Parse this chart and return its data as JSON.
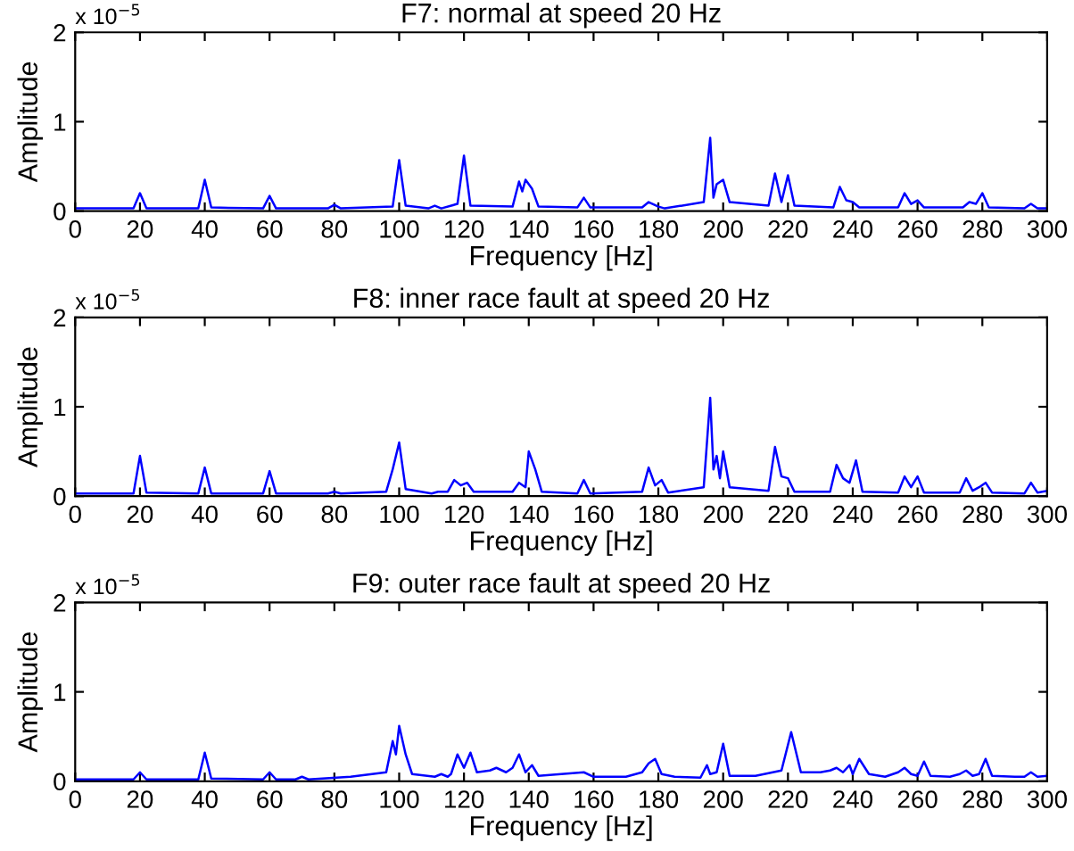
{
  "chart_data": [
    {
      "type": "line",
      "title": "F7: normal at speed 20 Hz",
      "xlabel": "Frequency [Hz]",
      "ylabel": "Amplitude",
      "annotations": [
        "x 10$^{−5}$"
      ],
      "xlim": [
        0,
        300
      ],
      "xticks": [
        0,
        20,
        40,
        60,
        80,
        100,
        120,
        140,
        160,
        180,
        200,
        220,
        240,
        260,
        280,
        300
      ],
      "ylim": [
        0,
        2
      ],
      "yticks": [
        0,
        1,
        2
      ],
      "grid": false,
      "legend": false,
      "series": [
        {
          "color": "#0000ff",
          "x": [
            0,
            18,
            20,
            22,
            38,
            40,
            42,
            58,
            60,
            62,
            78,
            80,
            82,
            98,
            100,
            102,
            109,
            111,
            113,
            118,
            120,
            122,
            135,
            137,
            138,
            139,
            141,
            143,
            155,
            157,
            159,
            175,
            177,
            180,
            182,
            194,
            196,
            197,
            198,
            200,
            202,
            214,
            216,
            218,
            220,
            222,
            234,
            236,
            238,
            240,
            242,
            254,
            256,
            258,
            260,
            262,
            274,
            276,
            278,
            280,
            282,
            293,
            295,
            297,
            300
          ],
          "values": [
            0.03,
            0.03,
            0.2,
            0.03,
            0.03,
            0.35,
            0.04,
            0.03,
            0.17,
            0.03,
            0.03,
            0.07,
            0.03,
            0.05,
            0.57,
            0.06,
            0.03,
            0.06,
            0.03,
            0.08,
            0.62,
            0.06,
            0.05,
            0.33,
            0.22,
            0.35,
            0.25,
            0.05,
            0.04,
            0.15,
            0.04,
            0.04,
            0.1,
            0.05,
            0.03,
            0.1,
            0.82,
            0.15,
            0.3,
            0.35,
            0.1,
            0.06,
            0.42,
            0.1,
            0.4,
            0.06,
            0.04,
            0.27,
            0.12,
            0.1,
            0.04,
            0.04,
            0.2,
            0.08,
            0.12,
            0.04,
            0.04,
            0.1,
            0.08,
            0.2,
            0.04,
            0.03,
            0.08,
            0.03,
            0.03
          ]
        }
      ]
    },
    {
      "type": "line",
      "title": "F8: inner race fault at speed 20 Hz",
      "xlabel": "Frequency [Hz]",
      "ylabel": "Amplitude",
      "annotations": [
        "x 10$^{−5}$"
      ],
      "xlim": [
        0,
        300
      ],
      "xticks": [
        0,
        20,
        40,
        60,
        80,
        100,
        120,
        140,
        160,
        180,
        200,
        220,
        240,
        260,
        280,
        300
      ],
      "ylim": [
        0,
        2
      ],
      "yticks": [
        0,
        1,
        2
      ],
      "grid": false,
      "legend": false,
      "series": [
        {
          "color": "#0000ff",
          "x": [
            0,
            18,
            20,
            22,
            38,
            40,
            42,
            58,
            60,
            62,
            78,
            80,
            82,
            96,
            98,
            100,
            102,
            110,
            112,
            115,
            117,
            119,
            121,
            123,
            135,
            137,
            139,
            140,
            142,
            144,
            155,
            157,
            159,
            175,
            177,
            179,
            181,
            183,
            194,
            196,
            197,
            198,
            199,
            200,
            202,
            214,
            216,
            218,
            220,
            222,
            233,
            235,
            237,
            239,
            241,
            243,
            254,
            256,
            258,
            260,
            262,
            273,
            275,
            277,
            279,
            281,
            283,
            293,
            295,
            297,
            300
          ],
          "values": [
            0.03,
            0.03,
            0.45,
            0.04,
            0.03,
            0.32,
            0.03,
            0.03,
            0.28,
            0.03,
            0.03,
            0.05,
            0.03,
            0.05,
            0.3,
            0.6,
            0.08,
            0.03,
            0.05,
            0.05,
            0.18,
            0.12,
            0.15,
            0.05,
            0.05,
            0.15,
            0.1,
            0.5,
            0.3,
            0.05,
            0.03,
            0.18,
            0.03,
            0.05,
            0.32,
            0.12,
            0.18,
            0.04,
            0.1,
            1.1,
            0.3,
            0.45,
            0.2,
            0.5,
            0.1,
            0.06,
            0.55,
            0.22,
            0.2,
            0.05,
            0.05,
            0.35,
            0.2,
            0.15,
            0.4,
            0.05,
            0.04,
            0.22,
            0.1,
            0.22,
            0.04,
            0.04,
            0.2,
            0.06,
            0.1,
            0.15,
            0.04,
            0.03,
            0.15,
            0.04,
            0.06
          ]
        }
      ]
    },
    {
      "type": "line",
      "title": "F9: outer race fault at speed 20 Hz",
      "xlabel": "Frequency [Hz]",
      "ylabel": "Amplitude",
      "annotations": [
        "x 10$^{−5}$"
      ],
      "xlim": [
        0,
        300
      ],
      "xticks": [
        0,
        20,
        40,
        60,
        80,
        100,
        120,
        140,
        160,
        180,
        200,
        220,
        240,
        260,
        280,
        300
      ],
      "ylim": [
        0,
        2
      ],
      "yticks": [
        0,
        1,
        2
      ],
      "grid": false,
      "legend": false,
      "series": [
        {
          "color": "#0000ff",
          "x": [
            0,
            18,
            20,
            22,
            38,
            40,
            42,
            58,
            60,
            62,
            68,
            70,
            72,
            85,
            96,
            98,
            99,
            100,
            102,
            104,
            111,
            113,
            115,
            116,
            118,
            120,
            122,
            124,
            128,
            130,
            133,
            135,
            137,
            139,
            141,
            143,
            150,
            157,
            160,
            170,
            175,
            177,
            179,
            181,
            185,
            193,
            195,
            196,
            198,
            200,
            202,
            210,
            218,
            221,
            224,
            230,
            233,
            235,
            237,
            239,
            240,
            242,
            245,
            250,
            254,
            256,
            258,
            260,
            262,
            264,
            270,
            273,
            275,
            277,
            279,
            281,
            283,
            290,
            293,
            295,
            297,
            300
          ],
          "values": [
            0.02,
            0.02,
            0.1,
            0.02,
            0.02,
            0.32,
            0.03,
            0.02,
            0.1,
            0.02,
            0.02,
            0.05,
            0.02,
            0.05,
            0.1,
            0.45,
            0.3,
            0.62,
            0.3,
            0.08,
            0.05,
            0.08,
            0.05,
            0.08,
            0.3,
            0.15,
            0.32,
            0.1,
            0.12,
            0.15,
            0.1,
            0.15,
            0.3,
            0.1,
            0.18,
            0.06,
            0.08,
            0.1,
            0.05,
            0.05,
            0.1,
            0.2,
            0.25,
            0.08,
            0.05,
            0.04,
            0.18,
            0.08,
            0.1,
            0.42,
            0.06,
            0.06,
            0.12,
            0.55,
            0.1,
            0.1,
            0.12,
            0.15,
            0.1,
            0.18,
            0.08,
            0.25,
            0.08,
            0.05,
            0.1,
            0.15,
            0.08,
            0.06,
            0.22,
            0.06,
            0.05,
            0.08,
            0.12,
            0.06,
            0.08,
            0.25,
            0.06,
            0.05,
            0.05,
            0.1,
            0.05,
            0.06
          ]
        }
      ]
    }
  ]
}
